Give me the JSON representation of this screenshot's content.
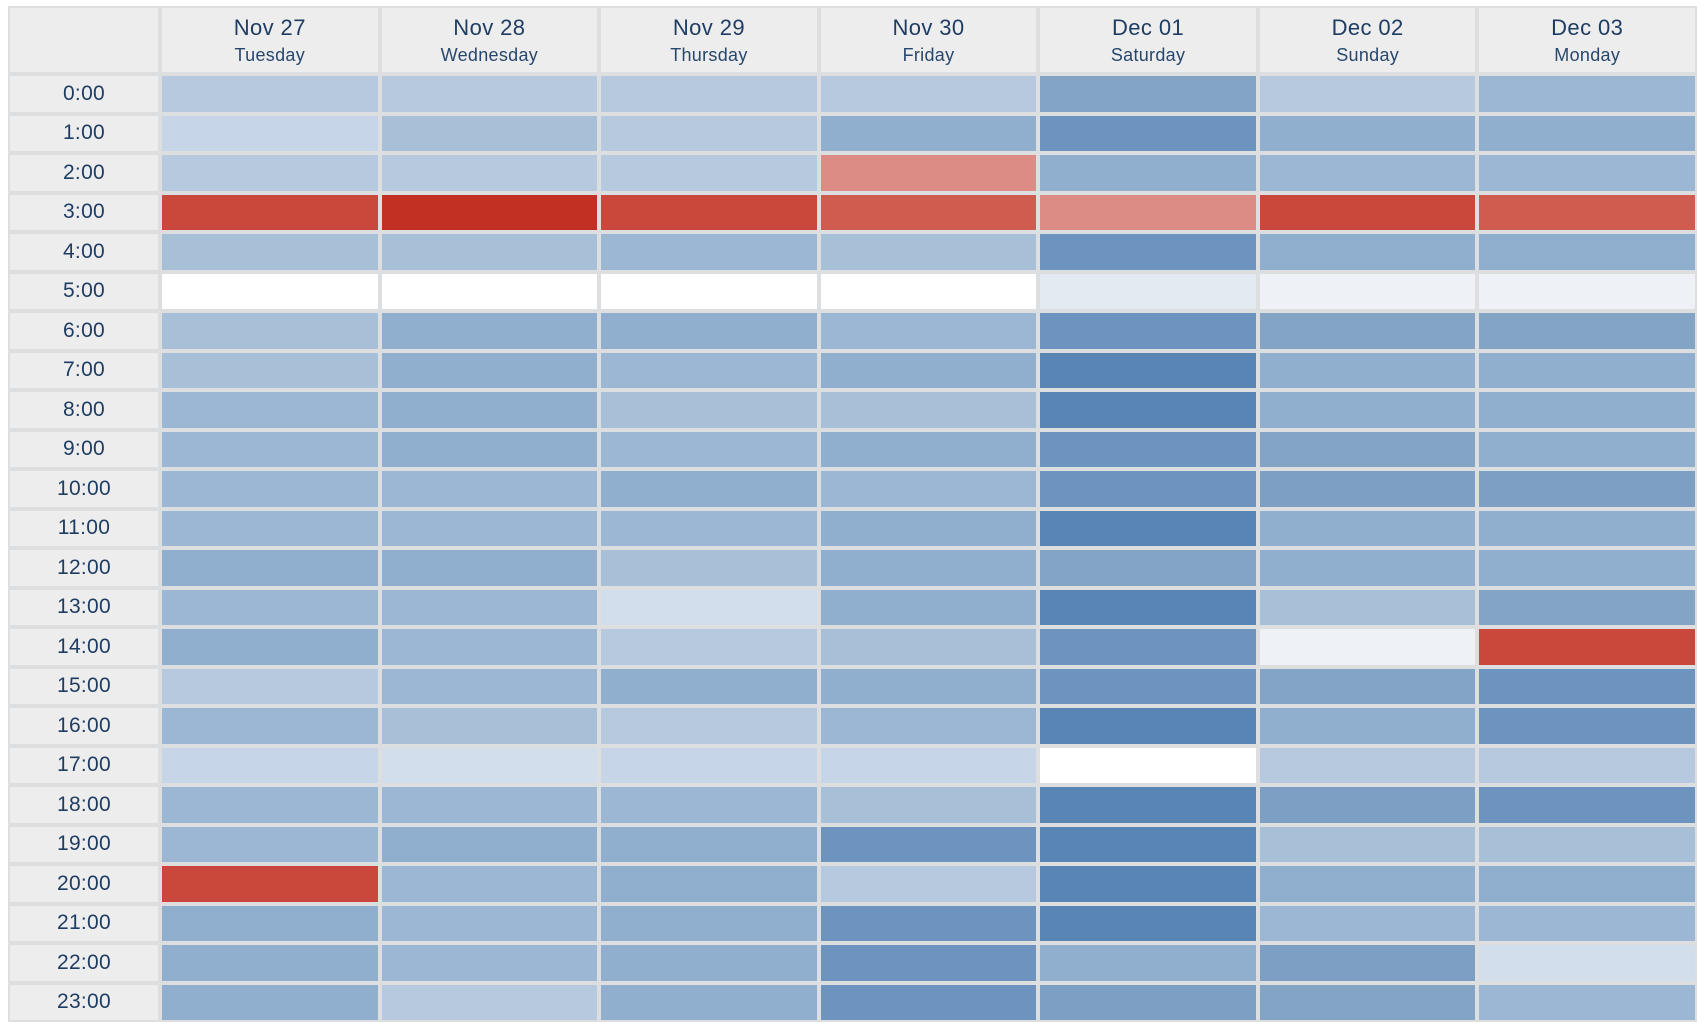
{
  "page": {
    "background": "#ffffff",
    "grid_line_color": "#dcdee0",
    "header_bg": "#ededee",
    "label_color": "#1f3d62"
  },
  "columns": [
    {
      "date": "Nov 27",
      "weekday": "Tuesday"
    },
    {
      "date": "Nov 28",
      "weekday": "Wednesday"
    },
    {
      "date": "Nov 29",
      "weekday": "Thursday"
    },
    {
      "date": "Nov 30",
      "weekday": "Friday"
    },
    {
      "date": "Dec 01",
      "weekday": "Saturday"
    },
    {
      "date": "Dec 02",
      "weekday": "Sunday"
    },
    {
      "date": "Dec 03",
      "weekday": "Monday"
    }
  ],
  "times": [
    "0:00",
    "1:00",
    "2:00",
    "3:00",
    "4:00",
    "5:00",
    "6:00",
    "7:00",
    "8:00",
    "9:00",
    "10:00",
    "11:00",
    "12:00",
    "13:00",
    "14:00",
    "15:00",
    "16:00",
    "17:00",
    "18:00",
    "19:00",
    "20:00",
    "21:00",
    "22:00",
    "23:00"
  ],
  "chart_data": {
    "type": "heatmap",
    "title": "",
    "x_labels": [
      "Nov 27 Tuesday",
      "Nov 28 Wednesday",
      "Nov 29 Thursday",
      "Nov 30 Friday",
      "Dec 01 Saturday",
      "Dec 02 Sunday",
      "Dec 03 Monday"
    ],
    "y_labels": [
      "0:00",
      "1:00",
      "2:00",
      "3:00",
      "4:00",
      "5:00",
      "6:00",
      "7:00",
      "8:00",
      "9:00",
      "10:00",
      "11:00",
      "12:00",
      "13:00",
      "14:00",
      "15:00",
      "16:00",
      "17:00",
      "18:00",
      "19:00",
      "20:00",
      "21:00",
      "22:00",
      "23:00"
    ],
    "legend": "none",
    "grid": "4px light-gray gutters between cells",
    "palette": {
      "w": "#ffffff",
      "b1": "#eef2f7",
      "b2": "#e3eaf2",
      "b3": "#d3deec",
      "b4": "#c6d5e7",
      "b5": "#b6c9df",
      "b6": "#a8bfd8",
      "b7": "#9cb7d3",
      "b8": "#90aecd",
      "b9": "#84a4c6",
      "b10": "#7d9fc3",
      "b11": "#6d94be",
      "b12": "#5885b4",
      "rA": "#dd8b85",
      "rB": "#d05c50",
      "rC": "#c9473b",
      "rD": "#c22f23"
    },
    "palette_meaning": {
      "w": "empty/no data",
      "b1_to_b12": "blue intensity scale, light (low) to dark (high)",
      "rA_to_rD": "red alert scale, light to dark"
    },
    "cells": [
      [
        "b5",
        "b5",
        "b5",
        "b5",
        "b9",
        "b5",
        "b7"
      ],
      [
        "b4",
        "b6",
        "b5",
        "b8",
        "b11",
        "b8",
        "b8"
      ],
      [
        "b5",
        "b5",
        "b5",
        "rA",
        "b8",
        "b7",
        "b7"
      ],
      [
        "rC",
        "rD",
        "rC",
        "rB",
        "rA",
        "rC",
        "rB"
      ],
      [
        "b6",
        "b6",
        "b7",
        "b6",
        "b11",
        "b8",
        "b8"
      ],
      [
        "w",
        "w",
        "w",
        "w",
        "b2",
        "b1",
        "b1"
      ],
      [
        "b6",
        "b8",
        "b8",
        "b7",
        "b11",
        "b9",
        "b9"
      ],
      [
        "b6",
        "b8",
        "b7",
        "b8",
        "b12",
        "b8",
        "b8"
      ],
      [
        "b7",
        "b8",
        "b6",
        "b6",
        "b12",
        "b8",
        "b8"
      ],
      [
        "b7",
        "b8",
        "b7",
        "b8",
        "b11",
        "b9",
        "b8"
      ],
      [
        "b7",
        "b7",
        "b8",
        "b7",
        "b11",
        "b10",
        "b10"
      ],
      [
        "b7",
        "b7",
        "b7",
        "b8",
        "b12",
        "b8",
        "b8"
      ],
      [
        "b8",
        "b8",
        "b6",
        "b8",
        "b9",
        "b8",
        "b8"
      ],
      [
        "b7",
        "b7",
        "b3",
        "b8",
        "b12",
        "b6",
        "b9"
      ],
      [
        "b8",
        "b7",
        "b5",
        "b6",
        "b11",
        "b1",
        "rC"
      ],
      [
        "b5",
        "b7",
        "b8",
        "b8",
        "b11",
        "b9",
        "b11"
      ],
      [
        "b7",
        "b6",
        "b5",
        "b7",
        "b12",
        "b8",
        "b11"
      ],
      [
        "b4",
        "b3",
        "b4",
        "b4",
        "w",
        "b5",
        "b5"
      ],
      [
        "b7",
        "b7",
        "b7",
        "b6",
        "b12",
        "b10",
        "b11"
      ],
      [
        "b7",
        "b8",
        "b8",
        "b11",
        "b12",
        "b6",
        "b6"
      ],
      [
        "rC",
        "b7",
        "b8",
        "b5",
        "b12",
        "b8",
        "b8"
      ],
      [
        "b8",
        "b7",
        "b8",
        "b11",
        "b12",
        "b7",
        "b7"
      ],
      [
        "b8",
        "b7",
        "b8",
        "b11",
        "b8",
        "b10",
        "b3"
      ],
      [
        "b8",
        "b5",
        "b8",
        "b11",
        "b10",
        "b9",
        "b7"
      ]
    ]
  }
}
